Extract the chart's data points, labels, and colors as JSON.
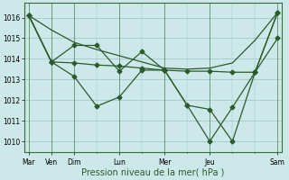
{
  "xlabel": "Pression niveau de la mer( hPa )",
  "background_color": "#cce8e8",
  "grid_color": "#99c4c4",
  "line_color": "#2d5a2d",
  "marker_color": "#2d5a2d",
  "spine_color": "#3a6b3a",
  "ylim": [
    1009.5,
    1016.7
  ],
  "xlim": [
    -0.2,
    11.2
  ],
  "yticks": [
    1010,
    1011,
    1012,
    1013,
    1014,
    1015,
    1016
  ],
  "xtick_pos": [
    0,
    1,
    2,
    4,
    6,
    8,
    11
  ],
  "xtick_labels": [
    "Mar",
    "Ven",
    "Dim",
    "Lun",
    "Mer",
    "Jeu",
    "Sam"
  ],
  "vline_positions": [
    0,
    1,
    2,
    4,
    6,
    8,
    11
  ],
  "s1x": [
    0,
    1,
    2,
    3,
    4,
    5,
    6,
    7,
    8,
    9,
    10,
    11
  ],
  "s1y": [
    1016.1,
    1015.4,
    1014.8,
    1014.45,
    1014.15,
    1013.85,
    1013.55,
    1013.5,
    1013.55,
    1013.8,
    1014.9,
    1016.25
  ],
  "s2x": [
    0,
    1,
    2,
    3,
    4,
    5,
    6,
    7,
    8,
    9,
    10,
    11
  ],
  "s2y": [
    1016.1,
    1013.85,
    1013.8,
    1013.7,
    1013.65,
    1013.55,
    1013.45,
    1013.4,
    1013.4,
    1013.35,
    1013.35,
    1016.25
  ],
  "s3x": [
    0,
    1,
    2,
    3,
    4,
    5,
    6,
    7,
    8,
    9,
    10,
    11
  ],
  "s3y": [
    1016.1,
    1013.85,
    1014.65,
    1014.65,
    1013.4,
    1014.35,
    1013.45,
    1011.75,
    1010.0,
    1011.65,
    1013.35,
    1016.25
  ],
  "s4x": [
    0,
    1,
    2,
    3,
    4,
    5,
    6,
    7,
    8,
    9,
    10,
    11
  ],
  "s4y": [
    1016.1,
    1013.85,
    1013.15,
    1011.7,
    1012.15,
    1013.45,
    1013.45,
    1011.75,
    1011.55,
    1010.0,
    1013.35,
    1015.0
  ]
}
